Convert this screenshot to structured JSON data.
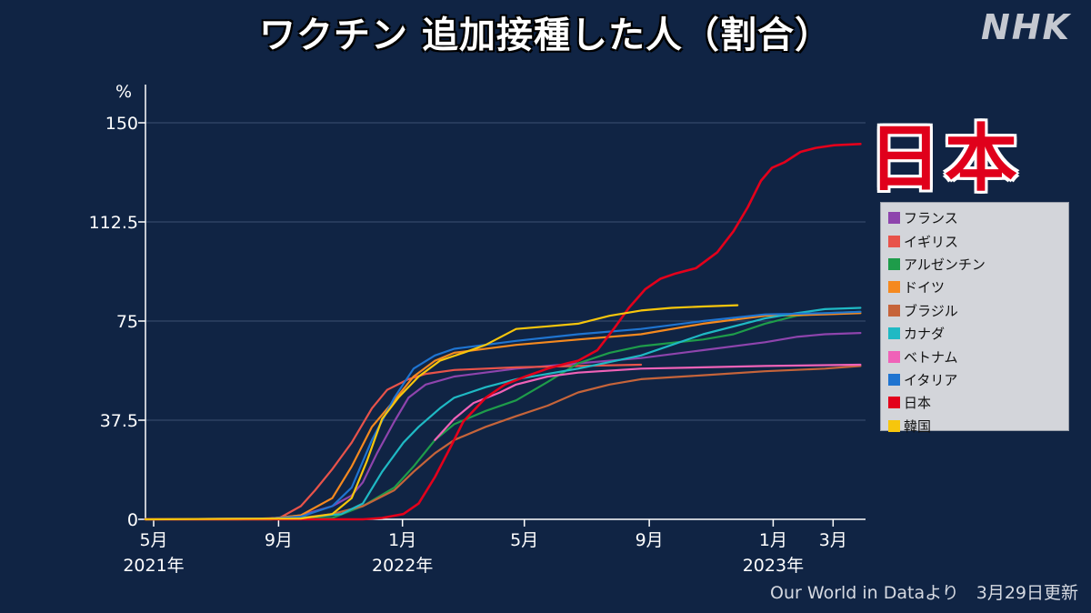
{
  "header": {
    "title": "ワクチン 追加接種した人（割合）",
    "logo": "NHK"
  },
  "highlight_label": "日本",
  "footer": {
    "source": "Our World in Dataより　3月29日更新"
  },
  "chart_data": {
    "type": "line",
    "title": "ワクチン 追加接種した人（割合）",
    "ylabel": "%",
    "xlabel": "",
    "ylim": [
      0,
      150
    ],
    "xlim": [
      "2021-05-01",
      "2023-04-10"
    ],
    "grid": true,
    "legend_position": "right",
    "y_ticks": [
      {
        "value": 0,
        "label": "0"
      },
      {
        "value": 37.5,
        "label": "37.5"
      },
      {
        "value": 75,
        "label": "75"
      },
      {
        "value": 112.5,
        "label": "112.5"
      },
      {
        "value": 150,
        "label": "150"
      }
    ],
    "x_ticks": [
      {
        "date": "2021-05-01",
        "label": "5月",
        "year_label": "2021年"
      },
      {
        "date": "2021-09-01",
        "label": "9月",
        "year_label": ""
      },
      {
        "date": "2022-01-01",
        "label": "1月",
        "year_label": "2022年"
      },
      {
        "date": "2022-05-01",
        "label": "5月",
        "year_label": ""
      },
      {
        "date": "2022-09-01",
        "label": "9月",
        "year_label": ""
      },
      {
        "date": "2023-01-01",
        "label": "1月",
        "year_label": "2023年"
      },
      {
        "date": "2023-03-01",
        "label": "3月",
        "year_label": ""
      }
    ],
    "series": [
      {
        "name": "フランス",
        "color": "#8e44ad",
        "points": [
          [
            "2021-05-01",
            0
          ],
          [
            "2021-09-01",
            0.3
          ],
          [
            "2021-10-01",
            1.5
          ],
          [
            "2021-11-01",
            5
          ],
          [
            "2021-11-20",
            9
          ],
          [
            "2021-12-01",
            14
          ],
          [
            "2021-12-15",
            25
          ],
          [
            "2022-01-01",
            37
          ],
          [
            "2022-01-15",
            46
          ],
          [
            "2022-02-01",
            51
          ],
          [
            "2022-03-01",
            54
          ],
          [
            "2022-05-01",
            57
          ],
          [
            "2022-07-01",
            59
          ],
          [
            "2022-09-01",
            61
          ],
          [
            "2022-11-01",
            64
          ],
          [
            "2023-01-01",
            67
          ],
          [
            "2023-02-01",
            69
          ],
          [
            "2023-03-01",
            70
          ],
          [
            "2023-04-05",
            70.5
          ]
        ]
      },
      {
        "name": "イギリス",
        "color": "#e8534a",
        "points": [
          [
            "2021-05-01",
            0
          ],
          [
            "2021-08-01",
            0
          ],
          [
            "2021-09-10",
            0.5
          ],
          [
            "2021-10-01",
            5
          ],
          [
            "2021-10-15",
            11
          ],
          [
            "2021-11-01",
            19
          ],
          [
            "2021-11-20",
            29
          ],
          [
            "2021-12-10",
            42
          ],
          [
            "2021-12-25",
            49
          ],
          [
            "2022-01-15",
            53
          ],
          [
            "2022-02-01",
            55
          ],
          [
            "2022-03-01",
            56.5
          ],
          [
            "2022-05-01",
            57.5
          ],
          [
            "2022-07-01",
            58
          ],
          [
            "2022-09-01",
            58.5
          ]
        ]
      },
      {
        "name": "アルゼンチン",
        "color": "#1e9c4a",
        "points": [
          [
            "2021-05-01",
            0
          ],
          [
            "2021-09-01",
            0
          ],
          [
            "2021-11-01",
            0.5
          ],
          [
            "2021-12-01",
            5
          ],
          [
            "2022-01-01",
            12
          ],
          [
            "2022-01-20",
            20
          ],
          [
            "2022-02-10",
            30
          ],
          [
            "2022-03-01",
            36
          ],
          [
            "2022-04-01",
            41
          ],
          [
            "2022-05-01",
            45
          ],
          [
            "2022-06-01",
            52
          ],
          [
            "2022-07-01",
            59
          ],
          [
            "2022-08-01",
            63
          ],
          [
            "2022-09-01",
            65.5
          ],
          [
            "2022-11-01",
            68
          ],
          [
            "2022-12-01",
            70
          ],
          [
            "2023-01-01",
            74
          ],
          [
            "2023-02-01",
            77
          ],
          [
            "2023-03-01",
            78
          ],
          [
            "2023-04-05",
            78.5
          ]
        ]
      },
      {
        "name": "ドイツ",
        "color": "#f5891f",
        "points": [
          [
            "2021-05-01",
            0
          ],
          [
            "2021-09-01",
            0.3
          ],
          [
            "2021-10-01",
            1.5
          ],
          [
            "2021-11-01",
            8
          ],
          [
            "2021-11-20",
            20
          ],
          [
            "2021-12-10",
            35
          ],
          [
            "2022-01-01",
            45
          ],
          [
            "2022-01-20",
            54
          ],
          [
            "2022-02-10",
            60
          ],
          [
            "2022-03-01",
            63
          ],
          [
            "2022-05-01",
            66
          ],
          [
            "2022-07-01",
            68
          ],
          [
            "2022-09-01",
            70
          ],
          [
            "2022-11-01",
            74
          ],
          [
            "2023-01-01",
            77
          ],
          [
            "2023-03-01",
            77.5
          ],
          [
            "2023-04-05",
            78
          ]
        ]
      },
      {
        "name": "ブラジル",
        "color": "#c6643a",
        "points": [
          [
            "2021-05-01",
            0
          ],
          [
            "2021-09-01",
            0
          ],
          [
            "2021-10-01",
            0.5
          ],
          [
            "2021-11-01",
            2
          ],
          [
            "2021-12-01",
            5
          ],
          [
            "2022-01-01",
            11
          ],
          [
            "2022-01-20",
            18
          ],
          [
            "2022-02-10",
            25
          ],
          [
            "2022-03-01",
            30
          ],
          [
            "2022-04-01",
            35
          ],
          [
            "2022-05-01",
            39
          ],
          [
            "2022-06-01",
            43
          ],
          [
            "2022-07-01",
            48
          ],
          [
            "2022-08-01",
            51
          ],
          [
            "2022-09-01",
            53
          ],
          [
            "2022-11-01",
            54.5
          ],
          [
            "2023-01-01",
            56
          ],
          [
            "2023-03-01",
            57
          ],
          [
            "2023-04-05",
            58
          ]
        ]
      },
      {
        "name": "カナダ",
        "color": "#1fb9c4",
        "points": [
          [
            "2021-05-01",
            0
          ],
          [
            "2021-09-01",
            0
          ],
          [
            "2021-10-01",
            0.5
          ],
          [
            "2021-11-10",
            2
          ],
          [
            "2021-12-01",
            6
          ],
          [
            "2021-12-20",
            18
          ],
          [
            "2022-01-10",
            29
          ],
          [
            "2022-01-25",
            35
          ],
          [
            "2022-02-15",
            42
          ],
          [
            "2022-03-01",
            46
          ],
          [
            "2022-04-01",
            50
          ],
          [
            "2022-05-01",
            53
          ],
          [
            "2022-06-01",
            55
          ],
          [
            "2022-07-01",
            57
          ],
          [
            "2022-09-01",
            62
          ],
          [
            "2022-11-01",
            70
          ],
          [
            "2023-01-01",
            76
          ],
          [
            "2023-02-01",
            78
          ],
          [
            "2023-03-01",
            79.5
          ],
          [
            "2023-04-05",
            80
          ]
        ]
      },
      {
        "name": "ベトナム",
        "color": "#f062b8",
        "points": [
          [
            "2022-02-10",
            30
          ],
          [
            "2022-03-01",
            38
          ],
          [
            "2022-03-20",
            44
          ],
          [
            "2022-04-15",
            48
          ],
          [
            "2022-05-01",
            51
          ],
          [
            "2022-06-01",
            54
          ],
          [
            "2022-07-01",
            55.5
          ],
          [
            "2022-09-01",
            57
          ],
          [
            "2022-11-01",
            57.5
          ],
          [
            "2023-01-01",
            58
          ],
          [
            "2023-04-05",
            58.5
          ]
        ]
      },
      {
        "name": "イタリア",
        "color": "#1f74d0",
        "points": [
          [
            "2021-05-01",
            0
          ],
          [
            "2021-09-01",
            0.3
          ],
          [
            "2021-10-01",
            1
          ],
          [
            "2021-11-01",
            5
          ],
          [
            "2021-11-20",
            12
          ],
          [
            "2021-12-10",
            30
          ],
          [
            "2022-01-01",
            46
          ],
          [
            "2022-01-20",
            57
          ],
          [
            "2022-02-10",
            62
          ],
          [
            "2022-03-01",
            64.5
          ],
          [
            "2022-05-01",
            67.5
          ],
          [
            "2022-07-01",
            70
          ],
          [
            "2022-09-01",
            72
          ],
          [
            "2022-11-01",
            75
          ],
          [
            "2023-01-01",
            77.5
          ],
          [
            "2023-03-01",
            78
          ],
          [
            "2023-04-05",
            78.5
          ]
        ]
      },
      {
        "name": "日本",
        "color": "#e3001b",
        "points": [
          [
            "2021-05-01",
            0
          ],
          [
            "2021-12-01",
            0
          ],
          [
            "2021-12-20",
            0.5
          ],
          [
            "2022-01-10",
            2
          ],
          [
            "2022-01-25",
            6
          ],
          [
            "2022-02-10",
            16
          ],
          [
            "2022-02-25",
            27
          ],
          [
            "2022-03-10",
            37
          ],
          [
            "2022-04-01",
            46
          ],
          [
            "2022-04-20",
            51
          ],
          [
            "2022-05-10",
            54
          ],
          [
            "2022-06-01",
            57
          ],
          [
            "2022-06-20",
            59
          ],
          [
            "2022-07-01",
            60
          ],
          [
            "2022-07-20",
            64
          ],
          [
            "2022-08-05",
            72
          ],
          [
            "2022-08-20",
            80
          ],
          [
            "2022-09-05",
            87
          ],
          [
            "2022-09-20",
            91
          ],
          [
            "2022-10-05",
            93
          ],
          [
            "2022-10-25",
            95
          ],
          [
            "2022-11-15",
            101
          ],
          [
            "2022-12-01",
            109
          ],
          [
            "2022-12-15",
            118
          ],
          [
            "2022-12-28",
            128
          ],
          [
            "2023-01-08",
            133
          ],
          [
            "2023-01-20",
            135
          ],
          [
            "2023-02-05",
            139
          ],
          [
            "2023-02-20",
            140.5
          ],
          [
            "2023-03-10",
            141.5
          ],
          [
            "2023-04-05",
            142
          ]
        ]
      },
      {
        "name": "韓国",
        "color": "#f7c60c",
        "points": [
          [
            "2021-05-01",
            0
          ],
          [
            "2021-10-01",
            0.3
          ],
          [
            "2021-11-01",
            2
          ],
          [
            "2021-11-20",
            8
          ],
          [
            "2021-12-05",
            22
          ],
          [
            "2021-12-20",
            38
          ],
          [
            "2022-01-05",
            46
          ],
          [
            "2022-01-25",
            54
          ],
          [
            "2022-02-15",
            60
          ],
          [
            "2022-03-10",
            63
          ],
          [
            "2022-04-01",
            66
          ],
          [
            "2022-05-01",
            72
          ],
          [
            "2022-06-01",
            73
          ],
          [
            "2022-07-01",
            74
          ],
          [
            "2022-08-01",
            77
          ],
          [
            "2022-09-01",
            79
          ],
          [
            "2022-10-01",
            80
          ],
          [
            "2022-11-01",
            80.5
          ],
          [
            "2022-12-05",
            81
          ]
        ]
      }
    ]
  }
}
